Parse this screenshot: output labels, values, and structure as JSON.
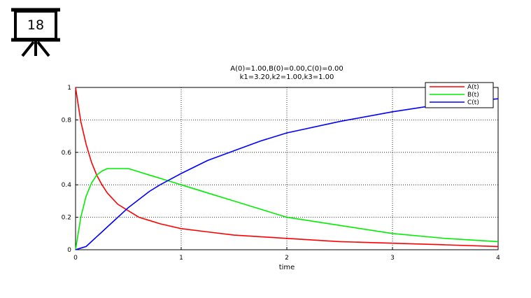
{
  "slide": {
    "number": "18",
    "icon": "presentation-board-icon"
  },
  "chart_data": {
    "type": "line",
    "title": [
      "A(0)=1.00,B(0)=0.00,C(0)=0.00",
      "k1=3.20,k2=1.00,k3=1.00"
    ],
    "xlabel": "time",
    "ylabel": "",
    "xlim": [
      0,
      4
    ],
    "ylim": [
      0,
      1
    ],
    "xticks": [
      "0",
      "1",
      "2",
      "3",
      "4"
    ],
    "yticks": [
      "0",
      "0.2",
      "0.4",
      "0.6",
      "0.8",
      "1"
    ],
    "grid": true,
    "legend_position": "top-right",
    "x": [
      0,
      0.05,
      0.1,
      0.15,
      0.2,
      0.25,
      0.3,
      0.4,
      0.5,
      0.6,
      0.7,
      0.8,
      1.0,
      1.25,
      1.5,
      1.75,
      2.0,
      2.5,
      3.0,
      3.5,
      4.0
    ],
    "series": [
      {
        "name": "A(t)",
        "color": "#ff0000",
        "values": [
          1.0,
          0.79,
          0.65,
          0.54,
          0.46,
          0.4,
          0.35,
          0.28,
          0.24,
          0.2,
          0.18,
          0.16,
          0.13,
          0.11,
          0.09,
          0.08,
          0.07,
          0.05,
          0.04,
          0.03,
          0.02
        ]
      },
      {
        "name": "B(t)",
        "color": "#00ee00",
        "values": [
          0.0,
          0.2,
          0.33,
          0.41,
          0.46,
          0.485,
          0.5,
          0.5,
          0.5,
          0.48,
          0.46,
          0.44,
          0.4,
          0.35,
          0.3,
          0.25,
          0.2,
          0.15,
          0.1,
          0.07,
          0.05
        ]
      },
      {
        "name": "C(t)",
        "color": "#0000ff",
        "values": [
          0.0,
          0.01,
          0.02,
          0.05,
          0.08,
          0.11,
          0.14,
          0.2,
          0.26,
          0.31,
          0.36,
          0.4,
          0.47,
          0.55,
          0.61,
          0.67,
          0.72,
          0.79,
          0.85,
          0.9,
          0.93
        ]
      }
    ]
  }
}
